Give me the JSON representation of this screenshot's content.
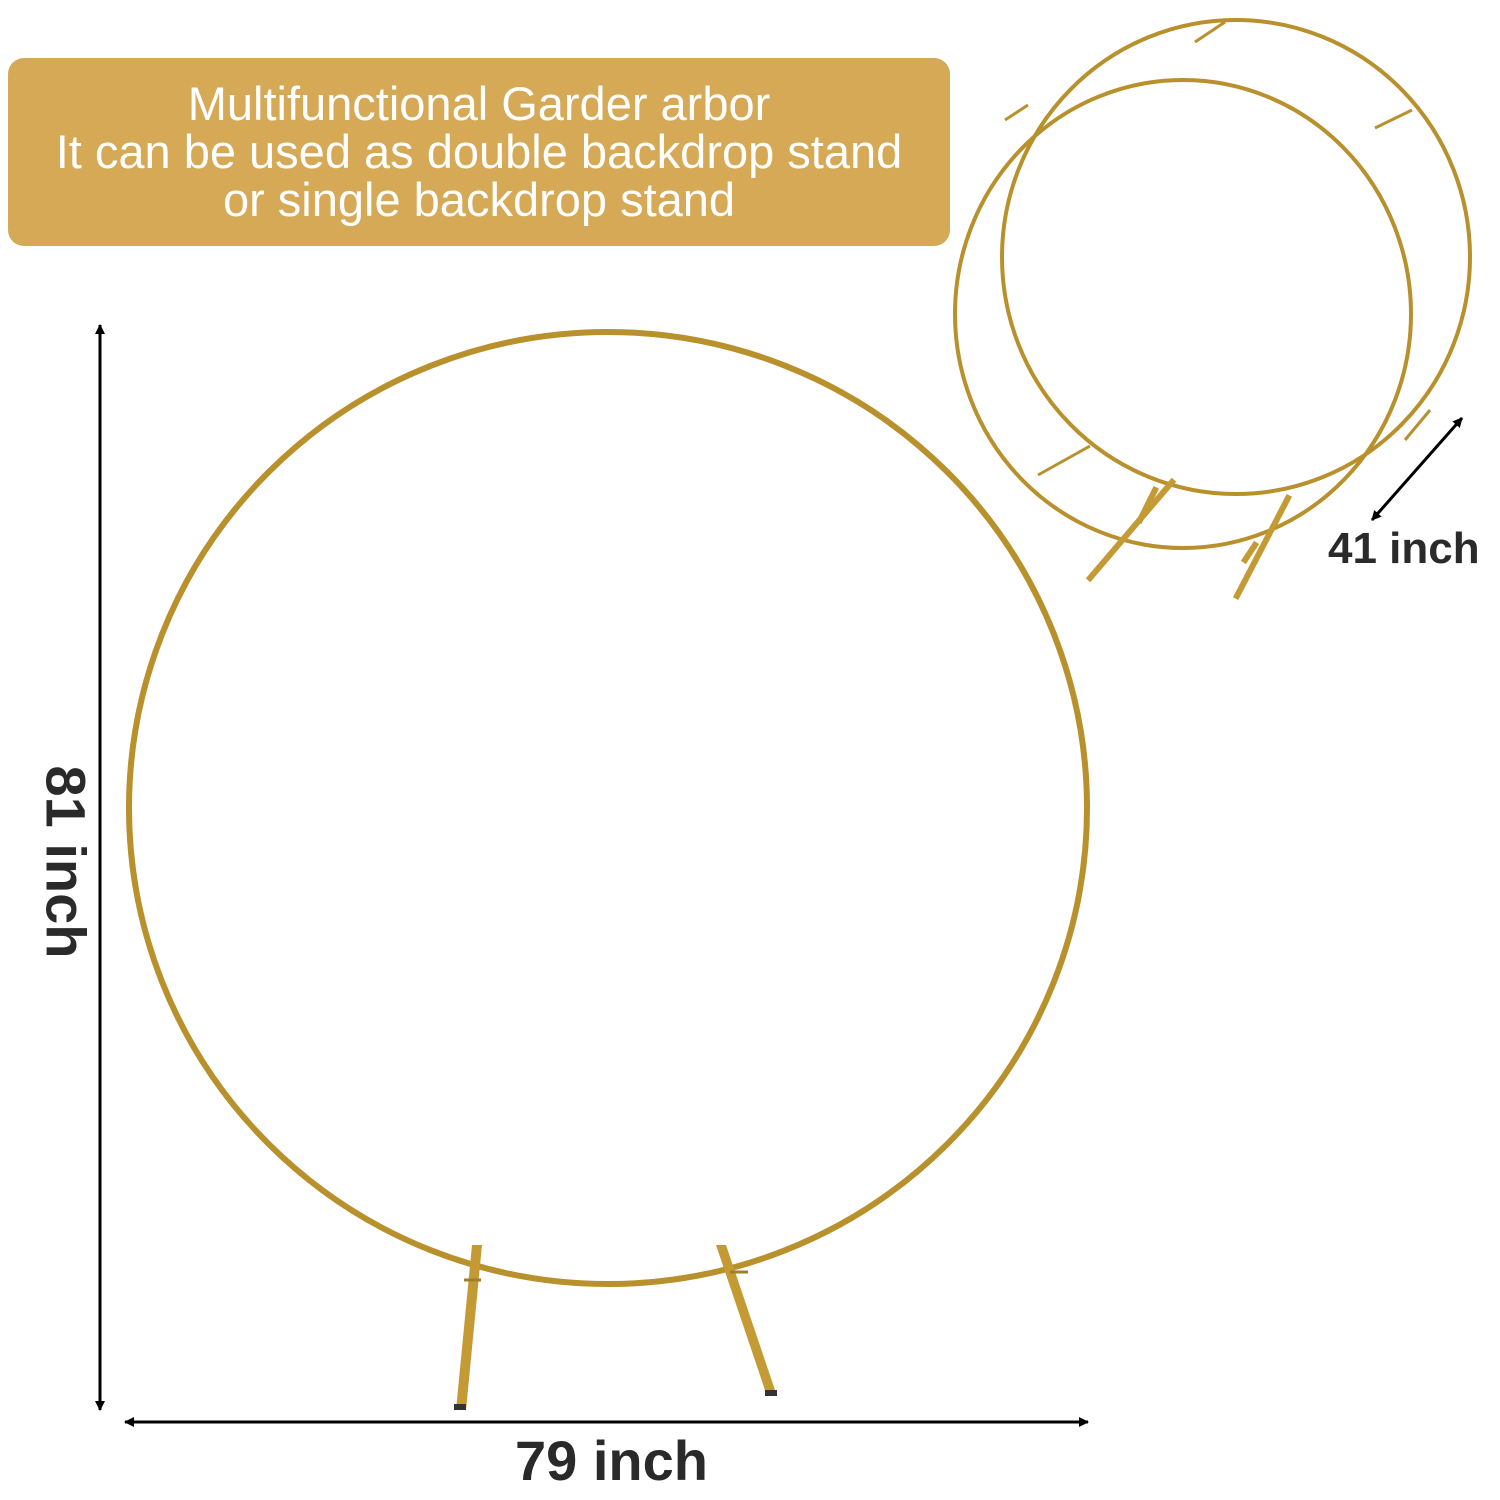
{
  "banner": {
    "line1": "Multifunctional Garder arbor",
    "line2": "It can be used as double backdrop stand",
    "line3": "or single backdrop stand"
  },
  "dimensions": {
    "height": "81 inch",
    "width": "79 inch",
    "depth": "41 inch"
  },
  "colors": {
    "banner_bg": "#d5a955",
    "frame_gold": "#b8902c",
    "arrow": "#000000",
    "label_text": "#2a2a2a"
  }
}
